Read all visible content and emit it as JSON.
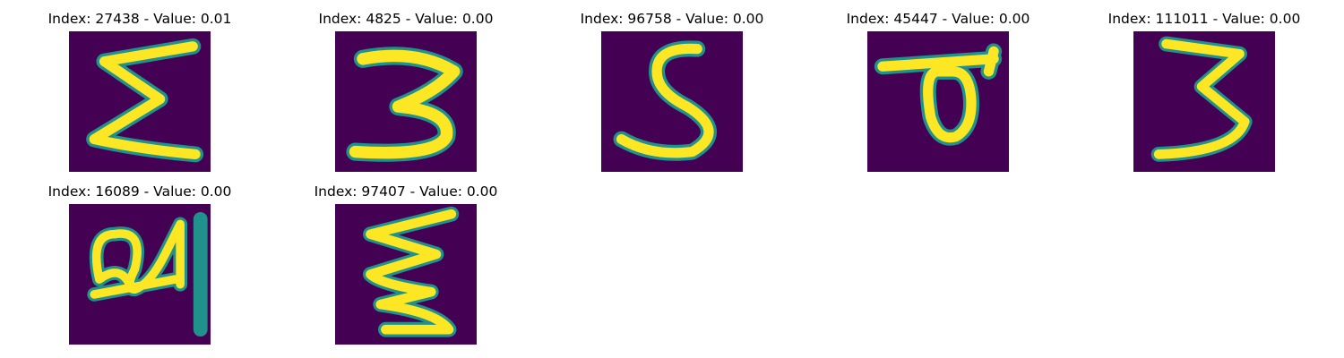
{
  "figure": {
    "panels": [
      {
        "title": "Index: 27438 - Value: 0.01",
        "index": 27438,
        "value": 0.01,
        "glyph": "Σ-like zigzag"
      },
      {
        "title": "Index: 4825 - Value: 0.00",
        "index": 4825,
        "value": 0.0,
        "glyph": "3"
      },
      {
        "title": "Index: 96758 - Value: 0.00",
        "index": 96758,
        "value": 0.0,
        "glyph": "S"
      },
      {
        "title": "Index: 45447 - Value: 0.00",
        "index": 45447,
        "value": 0.0,
        "glyph": "loop under bar"
      },
      {
        "title": "Index: 111011 - Value: 0.00",
        "index": 111011,
        "value": 0.0,
        "glyph": "3"
      },
      {
        "title": "Index: 16089 - Value: 0.00",
        "index": 16089,
        "value": 0.0,
        "glyph": "a4 ligature"
      },
      {
        "title": "Index: 97407 - Value: 0.00",
        "index": 97407,
        "value": 0.0,
        "glyph": "ξ-like zigzag"
      }
    ],
    "colormap": {
      "background": "#440154",
      "mid": "#21918c",
      "high": "#fde725"
    }
  }
}
